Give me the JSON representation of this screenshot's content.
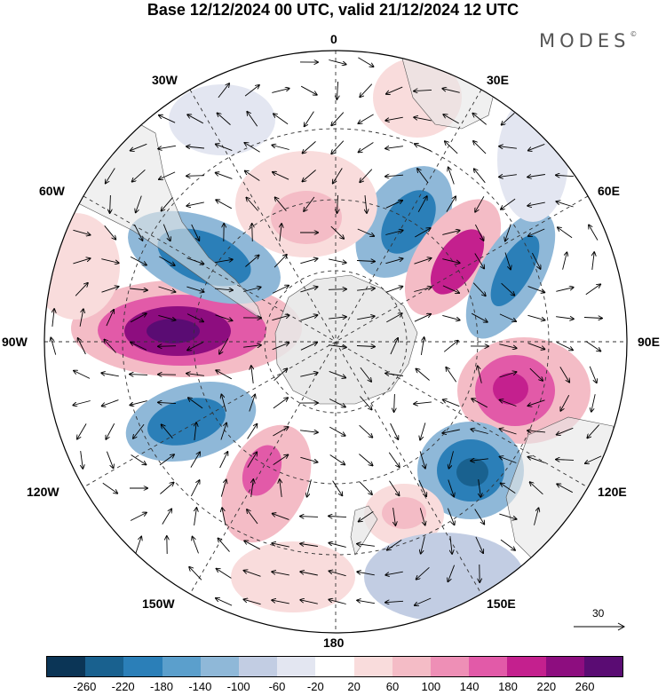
{
  "header": {
    "title": "Base 12/12/2024 00 UTC, valid 21/12/2024 12 UTC",
    "brand": "MODES"
  },
  "map": {
    "projection": "south-polar-stereographic",
    "longitude_labels": {
      "lon_0": "0",
      "lon_30e": "30E",
      "lon_60e": "60E",
      "lon_90e": "90E",
      "lon_120e": "120E",
      "lon_150e": "150E",
      "lon_180": "180",
      "lon_150w": "150W",
      "lon_120w": "120W",
      "lon_90w": "90W",
      "lon_60w": "60W",
      "lon_30w": "30W"
    },
    "land_color": "#e6e6e6",
    "graticule_style": "dashed"
  },
  "vector_reference": {
    "label": "30"
  },
  "colorbar": {
    "colors": [
      "#0b3556",
      "#19618f",
      "#2b7fb8",
      "#5b9fcc",
      "#8fb8d8",
      "#c2cde3",
      "#e3e6f1",
      "#ffffff",
      "#f9dcdc",
      "#f4bcc6",
      "#ee8fb6",
      "#e25aa8",
      "#c4208e",
      "#8d0d7f",
      "#5a0c73"
    ],
    "tick_labels": [
      "-260",
      "-220",
      "-180",
      "-140",
      "-100",
      "-60",
      "-20",
      "20",
      "60",
      "100",
      "140",
      "180",
      "220",
      "260"
    ]
  }
}
